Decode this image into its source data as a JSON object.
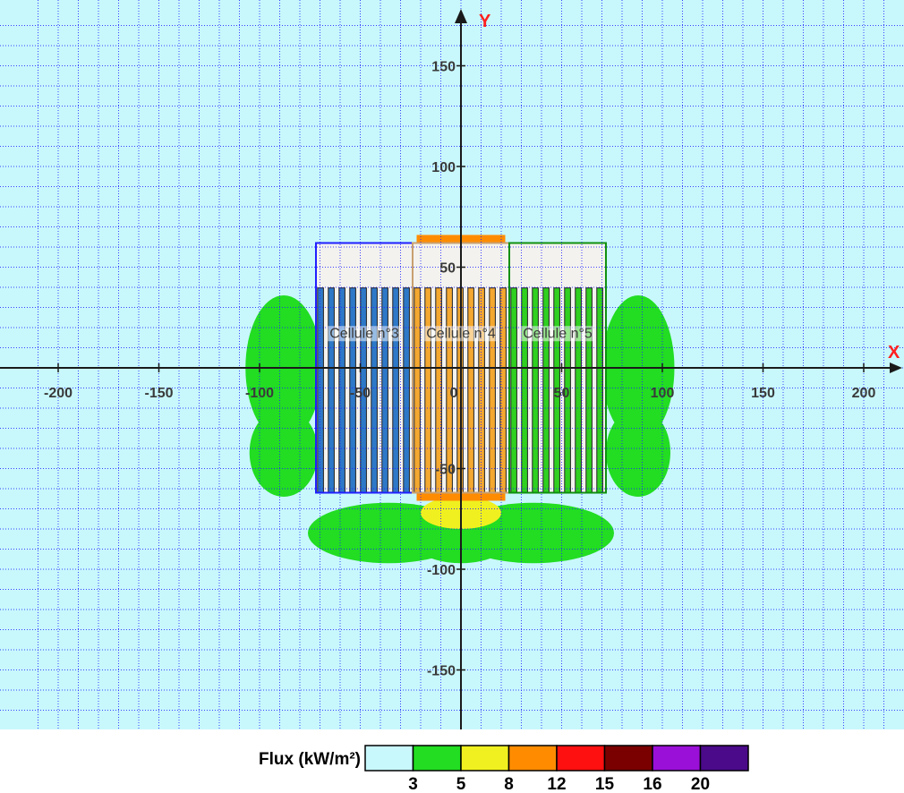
{
  "chart_data": {
    "type": "heatmap",
    "x_axis": {
      "label": "X",
      "range": [
        -217,
        217
      ],
      "ticks": [
        -200,
        -150,
        -100,
        -50,
        0,
        50,
        100,
        150,
        200
      ]
    },
    "y_axis": {
      "label": "Y",
      "range": [
        -185,
        177
      ],
      "ticks": [
        150,
        100,
        50,
        -50,
        -100,
        -150
      ]
    },
    "origin_label": "0",
    "grid": true,
    "grid_step": 10,
    "grid_color": "#2020ff",
    "background_color": "#c8f8fc",
    "cells": [
      {
        "label": "Cellule n°3",
        "x_range": [
          -72,
          -24
        ],
        "y_range": [
          -62,
          62
        ],
        "outline_color": "#2020ff",
        "fill_color": "#2e78c8"
      },
      {
        "label": "Cellule n°4",
        "x_range": [
          -24,
          24
        ],
        "y_range": [
          -62,
          62
        ],
        "outline_color": "#c8a070",
        "fill_color": "#f4a830"
      },
      {
        "label": "Cellule n°5",
        "x_range": [
          24,
          72
        ],
        "y_range": [
          -62,
          62
        ],
        "outline_color": "#109010",
        "fill_color": "#30d020"
      }
    ],
    "flux_zones": [
      {
        "level": "3",
        "color": "#22dd22",
        "shape": "ellipse",
        "center": [
          -88,
          0
        ],
        "radii": [
          19,
          36
        ]
      },
      {
        "level": "3",
        "color": "#22dd22",
        "shape": "ellipse",
        "center": [
          -88,
          -42
        ],
        "radii": [
          17,
          22
        ]
      },
      {
        "level": "3",
        "color": "#22dd22",
        "shape": "ellipse",
        "center": [
          88,
          0
        ],
        "radii": [
          18,
          36
        ]
      },
      {
        "level": "3",
        "color": "#22dd22",
        "shape": "ellipse",
        "center": [
          88,
          -42
        ],
        "radii": [
          16,
          22
        ]
      },
      {
        "level": "3",
        "color": "#22dd22",
        "shape": "ellipse",
        "center": [
          -36,
          -82
        ],
        "radii": [
          40,
          15
        ]
      },
      {
        "level": "3",
        "color": "#22dd22",
        "shape": "ellipse",
        "center": [
          36,
          -82
        ],
        "radii": [
          40,
          15
        ]
      },
      {
        "level": "3",
        "color": "#22dd22",
        "shape": "ellipse",
        "center": [
          0,
          -83
        ],
        "radii": [
          26,
          14
        ]
      },
      {
        "level": "5",
        "color": "#f0f020",
        "shape": "ellipse",
        "center": [
          0,
          -72
        ],
        "radii": [
          20,
          8
        ]
      },
      {
        "level": "8",
        "color": "#ff8c00",
        "shape": "rect",
        "x_range": [
          -22,
          22
        ],
        "y_range": [
          -66,
          -62
        ]
      },
      {
        "level": "8",
        "color": "#ff8c00",
        "shape": "rect",
        "x_range": [
          -22,
          22
        ],
        "y_range": [
          62,
          66
        ]
      }
    ],
    "legend": {
      "title": "Flux (kW/m²)",
      "colors": [
        "#c8f8fc",
        "#22dd22",
        "#f0f020",
        "#ff8c00",
        "#ff1010",
        "#7a0000",
        "#9a10d8",
        "#4a0a8a"
      ],
      "thresholds": [
        "3",
        "5",
        "8",
        "12",
        "15",
        "16",
        "20"
      ]
    }
  }
}
